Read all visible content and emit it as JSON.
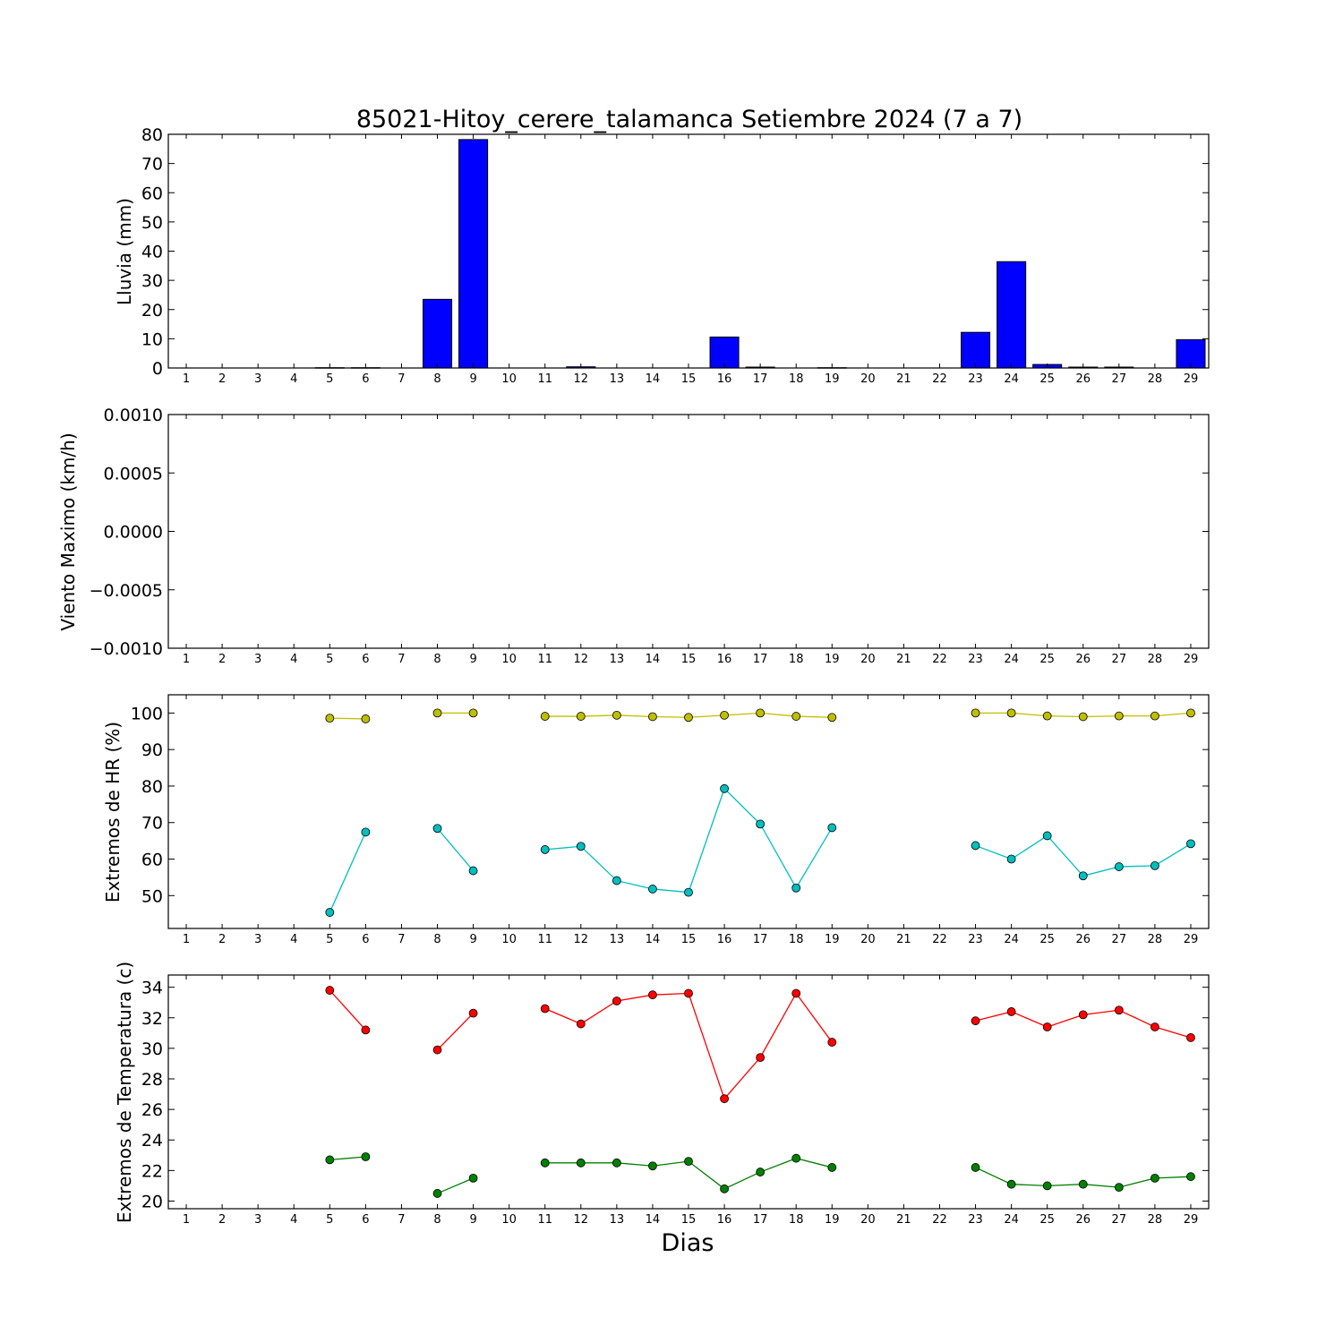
{
  "chart_data": [
    {
      "type": "bar",
      "title": "85021-Hitoy_cerere_talamanca Setiembre 2024  (7 a 7)",
      "xlabel": "",
      "ylabel": "Lluvia (mm)",
      "x": [
        1,
        2,
        3,
        4,
        5,
        6,
        7,
        8,
        9,
        10,
        11,
        12,
        13,
        14,
        15,
        16,
        17,
        18,
        19,
        20,
        21,
        22,
        23,
        24,
        25,
        26,
        27,
        28,
        29
      ],
      "values": [
        0,
        0,
        0,
        0,
        0.1,
        0.1,
        0,
        23.5,
        78.2,
        0,
        0,
        0.4,
        0,
        0,
        0,
        10.6,
        0.3,
        0,
        0.1,
        0,
        0,
        0,
        12.2,
        36.4,
        1.2,
        0.3,
        0.3,
        0,
        9.7
      ],
      "ylim": [
        0,
        80
      ],
      "yticks": [
        "0",
        "10",
        "20",
        "30",
        "40",
        "50",
        "60",
        "70",
        "80"
      ],
      "color": "#0000ff",
      "grid": false
    },
    {
      "type": "line",
      "ylabel": "Viento Maximo (km/h)",
      "x": [
        1,
        2,
        3,
        4,
        5,
        6,
        7,
        8,
        9,
        10,
        11,
        12,
        13,
        14,
        15,
        16,
        17,
        18,
        19,
        20,
        21,
        22,
        23,
        24,
        25,
        26,
        27,
        28,
        29
      ],
      "series": [],
      "ylim": [
        -0.001,
        0.001
      ],
      "yticks": [
        "−0.0010",
        "−0.0005",
        "0.0000",
        "0.0005",
        "0.0010"
      ],
      "grid": false
    },
    {
      "type": "line",
      "ylabel": "Extremos de HR (%)",
      "x": [
        1,
        2,
        3,
        4,
        5,
        6,
        7,
        8,
        9,
        10,
        11,
        12,
        13,
        14,
        15,
        16,
        17,
        18,
        19,
        20,
        21,
        22,
        23,
        24,
        25,
        26,
        27,
        28,
        29
      ],
      "series": [
        {
          "color": "#bfbf00",
          "values": [
            null,
            null,
            null,
            null,
            98.6,
            98.4,
            null,
            100,
            100,
            null,
            99.1,
            99.1,
            99.4,
            99.0,
            98.8,
            99.4,
            100,
            99.1,
            98.8,
            null,
            null,
            null,
            100,
            100,
            99.2,
            99.0,
            99.2,
            99.2,
            100
          ]
        },
        {
          "color": "#00bfbf",
          "values": [
            null,
            null,
            null,
            null,
            45.4,
            67.4,
            null,
            68.4,
            56.8,
            null,
            62.6,
            63.5,
            54.1,
            51.8,
            50.9,
            79.3,
            69.6,
            52.1,
            68.6,
            null,
            null,
            null,
            63.7,
            60.0,
            66.4,
            55.4,
            57.9,
            58.2,
            64.2
          ]
        }
      ],
      "ylim": [
        41,
        105
      ],
      "yticks": [
        "50",
        "60",
        "70",
        "80",
        "90",
        "100"
      ],
      "grid": false
    },
    {
      "type": "line",
      "ylabel": "Extremos de Temperatura (c)",
      "xlabel": "Dias",
      "x": [
        1,
        2,
        3,
        4,
        5,
        6,
        7,
        8,
        9,
        10,
        11,
        12,
        13,
        14,
        15,
        16,
        17,
        18,
        19,
        20,
        21,
        22,
        23,
        24,
        25,
        26,
        27,
        28,
        29
      ],
      "series": [
        {
          "color": "#ff0000",
          "values": [
            null,
            null,
            null,
            null,
            33.8,
            31.2,
            null,
            29.9,
            32.3,
            null,
            32.6,
            31.6,
            33.1,
            33.5,
            33.6,
            26.7,
            29.4,
            33.6,
            30.4,
            null,
            null,
            null,
            31.8,
            32.4,
            31.4,
            32.2,
            32.5,
            31.4,
            30.7
          ]
        },
        {
          "color": "#008000",
          "values": [
            null,
            null,
            null,
            null,
            22.7,
            22.9,
            null,
            20.5,
            21.5,
            null,
            22.5,
            22.5,
            22.5,
            22.3,
            22.6,
            20.8,
            21.9,
            22.8,
            22.2,
            null,
            null,
            null,
            22.2,
            21.1,
            21.0,
            21.1,
            20.9,
            21.5,
            21.6
          ]
        }
      ],
      "ylim": [
        19.5,
        34.8
      ],
      "yticks": [
        "20",
        "22",
        "24",
        "26",
        "28",
        "30",
        "32",
        "34"
      ],
      "grid": false
    }
  ]
}
